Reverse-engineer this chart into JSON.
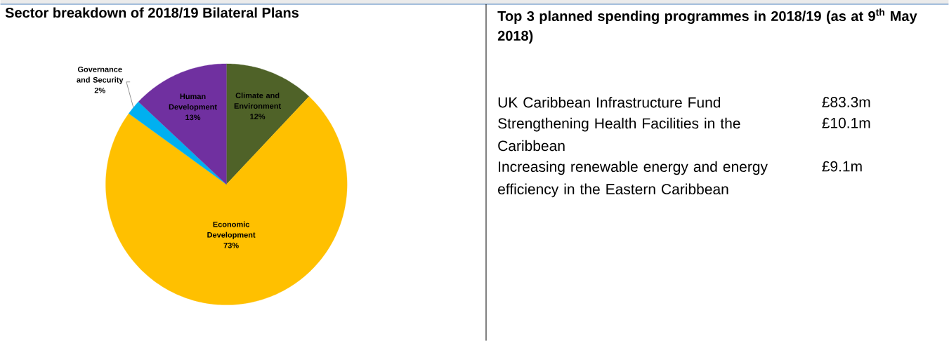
{
  "chart_data": [
    {
      "type": "pie",
      "title": "Sector breakdown of 2018/19 Bilateral Plans",
      "categories": [
        "Climate and Environment",
        "Economic Development",
        "Governance and Security",
        "Human Development"
      ],
      "values": [
        12,
        73,
        2,
        13
      ],
      "value_labels": [
        "12%",
        "73%",
        "2%",
        "13%"
      ],
      "colors": [
        "#4f6228",
        "#ffc000",
        "#00b0f0",
        "#7030a0"
      ]
    },
    {
      "type": "other",
      "title": "Top 3 planned spending programmes in 2018/19 (as at 9$^{th}$ May 2018)",
      "annotations": [
        "UK Caribbean Infrastructure Fund",
        "£83.3m",
        "Strengthening Health Facilities in the Caribbean",
        "£10.1m",
        "Increasing renewable energy and energy efficiency in the Eastern Caribbean",
        "£9.1m"
      ]
    }
  ]
}
